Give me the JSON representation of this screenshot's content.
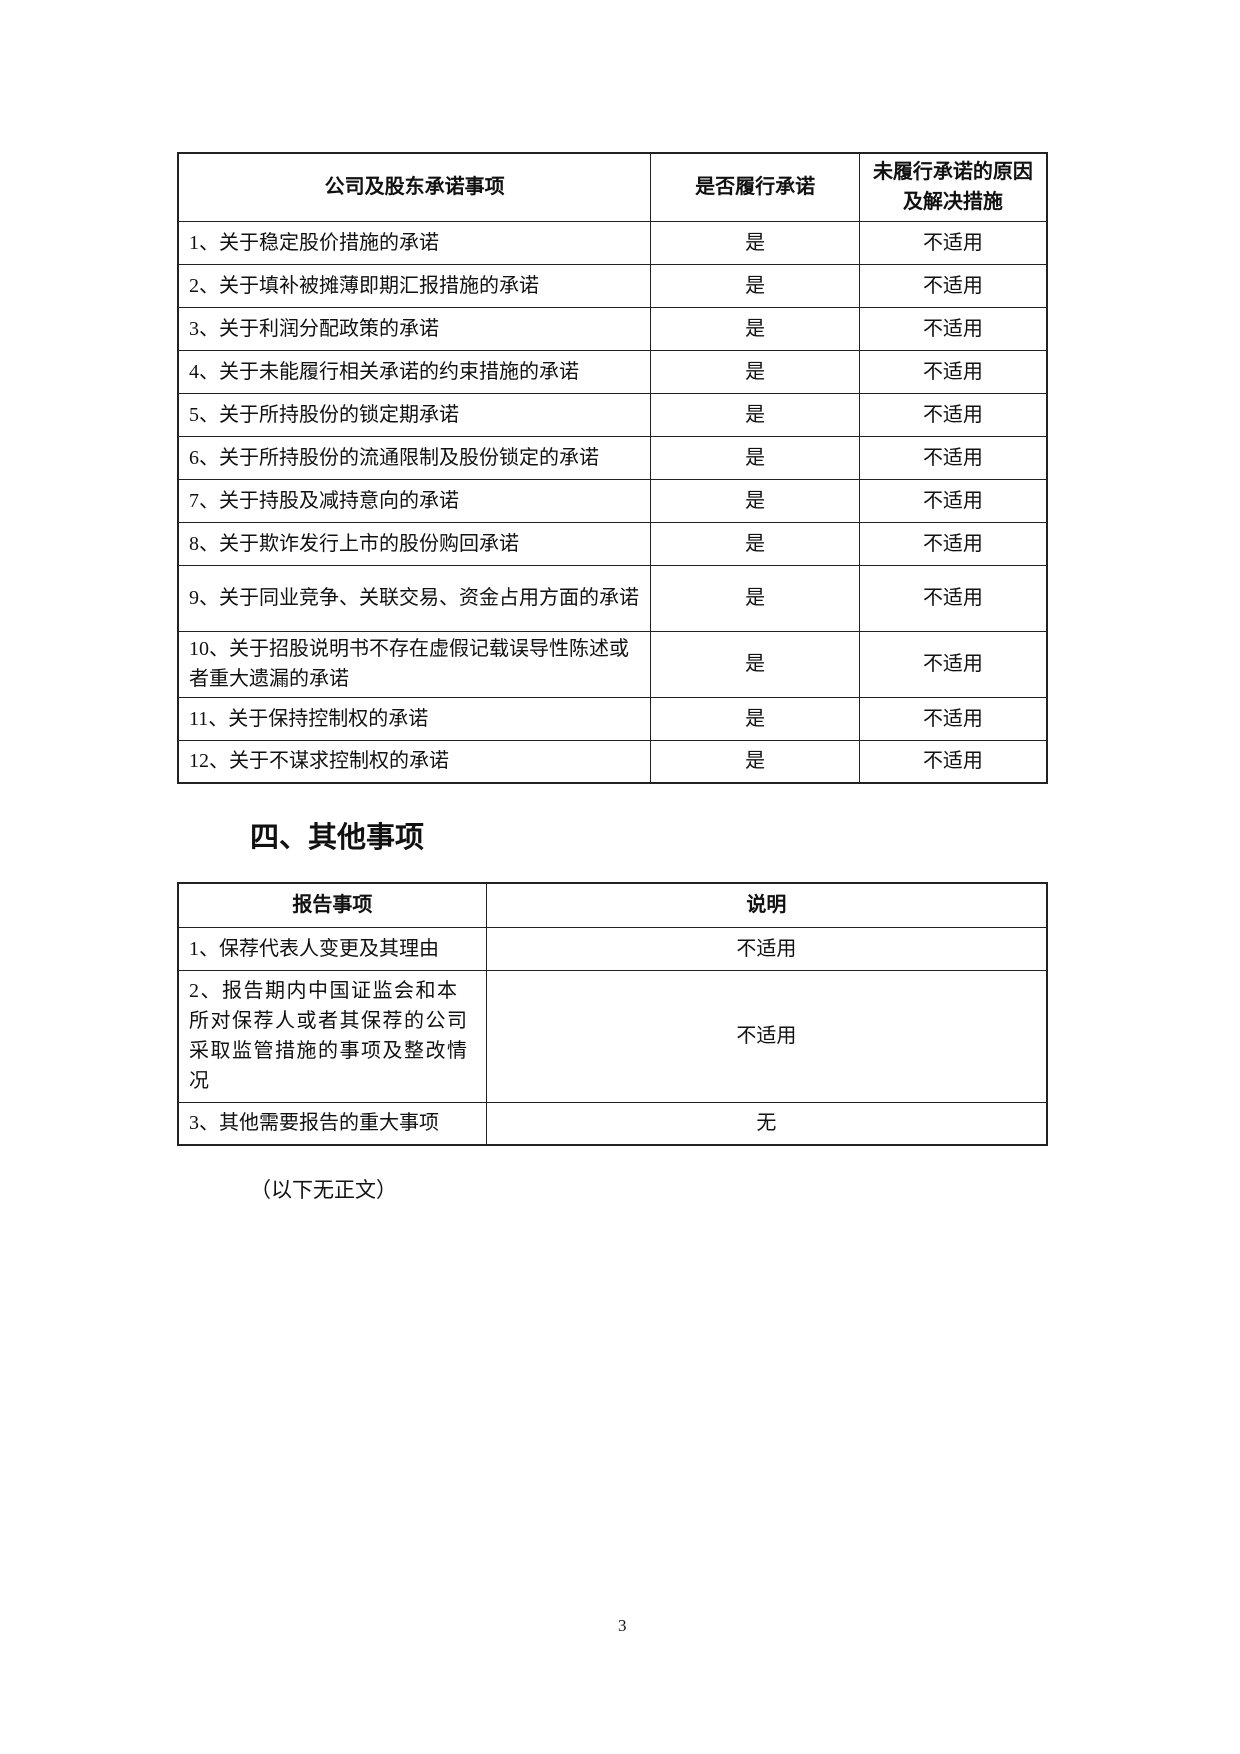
{
  "commitments_table": {
    "headers": [
      "公司及股东承诺事项",
      "是否履行承诺",
      "未履行承诺的原因及解决措施"
    ],
    "rows": [
      [
        "1、关于稳定股价措施的承诺",
        "是",
        "不适用"
      ],
      [
        "2、关于填补被摊薄即期汇报措施的承诺",
        "是",
        "不适用"
      ],
      [
        "3、关于利润分配政策的承诺",
        "是",
        "不适用"
      ],
      [
        "4、关于未能履行相关承诺的约束措施的承诺",
        "是",
        "不适用"
      ],
      [
        "5、关于所持股份的锁定期承诺",
        "是",
        "不适用"
      ],
      [
        "6、关于所持股份的流通限制及股份锁定的承诺",
        "是",
        "不适用"
      ],
      [
        "7、关于持股及减持意向的承诺",
        "是",
        "不适用"
      ],
      [
        "8、关于欺诈发行上市的股份购回承诺",
        "是",
        "不适用"
      ],
      [
        "9、关于同业竞争、关联交易、资金占用方面的承诺",
        "是",
        "不适用"
      ],
      [
        "10、关于招股说明书不存在虚假记载误导性陈述或者重大遗漏的承诺",
        "是",
        "不适用"
      ],
      [
        "11、关于保持控制权的承诺",
        "是",
        "不适用"
      ],
      [
        "12、关于不谋求控制权的承诺",
        "是",
        "不适用"
      ]
    ]
  },
  "section_heading": "四、其他事项",
  "other_table": {
    "headers": [
      "报告事项",
      "说明"
    ],
    "rows": [
      [
        "1、保荐代表人变更及其理由",
        "不适用"
      ],
      [
        "2、报告期内中国证监会和本所对保荐人或者其保荐的公司采取监管措施的事项及整改情况",
        "不适用"
      ],
      [
        "3、其他需要报告的重大事项",
        "无"
      ]
    ]
  },
  "end_note": "（以下无正文）",
  "page_number": "3"
}
